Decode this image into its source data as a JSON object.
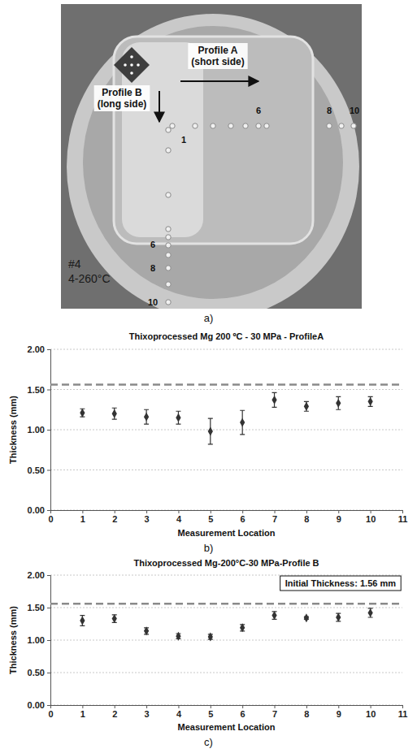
{
  "figure": {
    "photo": {
      "profile_a": [
        "Profile A",
        "(short side)"
      ],
      "profile_b": [
        "Profile B",
        "(long side)"
      ],
      "a_point_labels": [
        "1",
        "6",
        "8",
        "10"
      ],
      "b_point_labels": [
        "6",
        "8",
        "10"
      ],
      "sample_marks": [
        "#4",
        "4-260°C"
      ]
    },
    "panel_labels": [
      "a)",
      "b)",
      "c)"
    ]
  },
  "chart_data": [
    {
      "type": "scatter",
      "title": "Thixoprocessed Mg 200 ºC - 30 MPa - ProfileA",
      "x_label": "Measurement Location",
      "y_label": "Thickness (mm)",
      "x": [
        1,
        2,
        3,
        4,
        5,
        6,
        7,
        8,
        9,
        10
      ],
      "values": [
        1.21,
        1.2,
        1.16,
        1.15,
        0.98,
        1.09,
        1.37,
        1.29,
        1.33,
        1.35
      ],
      "errors": [
        0.05,
        0.07,
        0.09,
        0.08,
        0.16,
        0.15,
        0.09,
        0.06,
        0.08,
        0.06
      ],
      "initial_thickness": 1.56,
      "color": "#333333",
      "marker": "diamond",
      "grid": true,
      "xlim": [
        0,
        11
      ],
      "xticks": [
        0,
        1,
        2,
        3,
        4,
        5,
        6,
        7,
        8,
        9,
        10,
        11
      ],
      "ylim": [
        0,
        2
      ],
      "yticks": [
        {
          "value": 0,
          "label": "0.00"
        },
        {
          "value": 0.5,
          "label": "0.50"
        },
        {
          "value": 1,
          "label": "1.00"
        },
        {
          "value": 1.5,
          "label": "1.50"
        },
        {
          "value": 2,
          "label": "2.00"
        }
      ]
    },
    {
      "type": "scatter",
      "title": "Thixoprocessed Mg-200°C-30 MPa-Profile B",
      "annotation": "Initial Thickness: 1.56 mm",
      "x_label": "Measurement Location",
      "y_label": "Thickness (mm)",
      "x": [
        1,
        2,
        3,
        4,
        5,
        6,
        7,
        8,
        9,
        10
      ],
      "values": [
        1.3,
        1.33,
        1.14,
        1.06,
        1.05,
        1.19,
        1.38,
        1.34,
        1.35,
        1.42
      ],
      "errors": [
        0.08,
        0.06,
        0.05,
        0.04,
        0.04,
        0.05,
        0.06,
        0.02,
        0.06,
        0.07
      ],
      "initial_thickness": 1.56,
      "color": "#333333",
      "marker": "diamond",
      "grid": true,
      "xlim": [
        0,
        11
      ],
      "xticks": [
        0,
        1,
        2,
        3,
        4,
        5,
        6,
        7,
        8,
        9,
        10,
        11
      ],
      "ylim": [
        0,
        2
      ],
      "yticks": [
        {
          "value": 0,
          "label": "0.00"
        },
        {
          "value": 0.5,
          "label": "0.50"
        },
        {
          "value": 1,
          "label": "1.00"
        },
        {
          "value": 1.5,
          "label": "1.50"
        },
        {
          "value": 2,
          "label": "2.00"
        }
      ]
    }
  ]
}
